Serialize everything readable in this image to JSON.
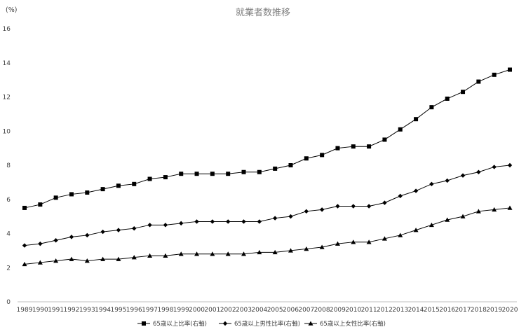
{
  "chart_data": {
    "type": "line",
    "title": "就業者数推移",
    "ylabel": "(%)",
    "xlabel": "",
    "ylim": [
      0,
      16
    ],
    "yticks": [
      0,
      2,
      4,
      6,
      8,
      10,
      12,
      14,
      16
    ],
    "grid": false,
    "legend_position": "bottom",
    "categories": [
      "1989",
      "1990",
      "1991",
      "1992",
      "1993",
      "1994",
      "1995",
      "1996",
      "1997",
      "1998",
      "1999",
      "2000",
      "2001",
      "2002",
      "2003",
      "2004",
      "2005",
      "2006",
      "2007",
      "2008",
      "2009",
      "2010",
      "2011",
      "2012",
      "2013",
      "2014",
      "2015",
      "2016",
      "2017",
      "2018",
      "2019",
      "2020"
    ],
    "series": [
      {
        "name": "65歳以上比率(右軸)",
        "marker": "square",
        "color": "#000000",
        "values": [
          5.5,
          5.7,
          6.1,
          6.3,
          6.4,
          6.6,
          6.8,
          6.9,
          7.2,
          7.3,
          7.5,
          7.5,
          7.5,
          7.5,
          7.6,
          7.6,
          7.8,
          8.0,
          8.4,
          8.6,
          9.0,
          9.1,
          9.1,
          9.5,
          10.1,
          10.7,
          11.4,
          11.9,
          12.3,
          12.9,
          13.3,
          13.6
        ]
      },
      {
        "name": "65歳以上男性比率(右軸)",
        "marker": "diamond",
        "color": "#000000",
        "values": [
          3.3,
          3.4,
          3.6,
          3.8,
          3.9,
          4.1,
          4.2,
          4.3,
          4.5,
          4.5,
          4.6,
          4.7,
          4.7,
          4.7,
          4.7,
          4.7,
          4.9,
          5.0,
          5.3,
          5.4,
          5.6,
          5.6,
          5.6,
          5.8,
          6.2,
          6.5,
          6.9,
          7.1,
          7.4,
          7.6,
          7.9,
          8.0
        ]
      },
      {
        "name": "65歳以上女性比率(右軸)",
        "marker": "triangle",
        "color": "#000000",
        "values": [
          2.2,
          2.3,
          2.4,
          2.5,
          2.4,
          2.5,
          2.5,
          2.6,
          2.7,
          2.7,
          2.8,
          2.8,
          2.8,
          2.8,
          2.8,
          2.9,
          2.9,
          3.0,
          3.1,
          3.2,
          3.4,
          3.5,
          3.5,
          3.7,
          3.9,
          4.2,
          4.5,
          4.8,
          5.0,
          5.3,
          5.4,
          5.5
        ]
      }
    ]
  }
}
